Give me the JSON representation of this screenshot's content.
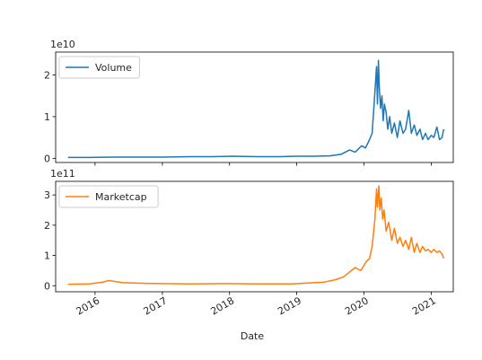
{
  "chart_data": [
    {
      "type": "line",
      "panel": "top",
      "legend_placement": "upper-left",
      "grid": false,
      "exponent_label": "1e10",
      "ylim": [
        -0.1,
        2.55
      ],
      "yticks": [
        0,
        1,
        2
      ],
      "ytick_labels": [
        "0",
        "1",
        "2"
      ],
      "series": [
        {
          "name": "Volume",
          "color": "#1f77b4",
          "x": [
            "2015-08-07",
            "2015-12-01",
            "2016-04-01",
            "2016-09-01",
            "2017-01-01",
            "2017-06-01",
            "2017-10-01",
            "2018-01-15",
            "2018-06-01",
            "2018-10-01",
            "2019-01-01",
            "2019-04-01",
            "2019-07-01",
            "2019-09-01",
            "2019-10-15",
            "2019-11-15",
            "2019-12-20",
            "2020-01-10",
            "2020-02-01",
            "2020-02-15",
            "2020-03-01",
            "2020-03-10",
            "2020-03-15",
            "2020-03-20",
            "2020-03-25",
            "2020-04-01",
            "2020-04-08",
            "2020-04-15",
            "2020-04-22",
            "2020-05-01",
            "2020-05-10",
            "2020-05-20",
            "2020-06-01",
            "2020-06-15",
            "2020-07-01",
            "2020-07-15",
            "2020-08-01",
            "2020-08-15",
            "2020-09-01",
            "2020-09-15",
            "2020-10-01",
            "2020-10-15",
            "2020-11-01",
            "2020-11-15",
            "2020-12-01",
            "2020-12-15",
            "2021-01-01",
            "2021-01-15",
            "2021-02-01",
            "2021-02-15",
            "2021-03-01",
            "2021-03-10"
          ],
          "values": [
            0.02,
            0.02,
            0.03,
            0.03,
            0.03,
            0.04,
            0.04,
            0.05,
            0.04,
            0.04,
            0.05,
            0.05,
            0.06,
            0.1,
            0.2,
            0.15,
            0.3,
            0.25,
            0.45,
            0.6,
            1.6,
            2.2,
            1.3,
            2.35,
            1.7,
            1.2,
            1.5,
            0.9,
            1.3,
            1.1,
            0.7,
            1.0,
            0.6,
            0.85,
            0.5,
            0.9,
            0.6,
            0.7,
            1.15,
            0.6,
            0.8,
            0.55,
            0.7,
            0.45,
            0.6,
            0.45,
            0.55,
            0.5,
            0.75,
            0.45,
            0.5,
            0.7
          ]
        }
      ]
    },
    {
      "type": "line",
      "panel": "bottom",
      "legend_placement": "upper-left",
      "grid": false,
      "exponent_label": "1e11",
      "xlabel": "Date",
      "ylim": [
        -0.2,
        3.45
      ],
      "yticks": [
        0,
        1,
        2,
        3
      ],
      "ytick_labels": [
        "0",
        "1",
        "2",
        "3"
      ],
      "xlim": [
        "2015-06-01",
        "2021-05-01"
      ],
      "xticks": [
        "2016-01-01",
        "2017-01-01",
        "2018-01-01",
        "2019-01-01",
        "2020-01-01",
        "2021-01-01"
      ],
      "xtick_labels": [
        "2016",
        "2017",
        "2018",
        "2019",
        "2020",
        "2021"
      ],
      "series": [
        {
          "name": "Marketcap",
          "color": "#ff7f0e",
          "x": [
            "2015-08-07",
            "2015-12-01",
            "2016-02-15",
            "2016-03-15",
            "2016-06-01",
            "2016-10-01",
            "2017-01-01",
            "2017-06-01",
            "2017-12-01",
            "2018-06-01",
            "2018-12-01",
            "2019-03-01",
            "2019-06-01",
            "2019-08-01",
            "2019-09-15",
            "2019-10-15",
            "2019-11-15",
            "2019-12-15",
            "2020-01-15",
            "2020-02-01",
            "2020-02-15",
            "2020-03-01",
            "2020-03-10",
            "2020-03-15",
            "2020-03-22",
            "2020-03-28",
            "2020-04-05",
            "2020-04-12",
            "2020-04-20",
            "2020-05-01",
            "2020-05-15",
            "2020-06-01",
            "2020-06-15",
            "2020-07-01",
            "2020-07-15",
            "2020-08-01",
            "2020-08-15",
            "2020-09-01",
            "2020-09-15",
            "2020-10-01",
            "2020-10-15",
            "2020-11-01",
            "2020-11-15",
            "2020-12-01",
            "2020-12-15",
            "2021-01-01",
            "2021-01-15",
            "2021-02-01",
            "2021-02-15",
            "2021-03-01",
            "2021-03-10"
          ],
          "values": [
            0.05,
            0.06,
            0.12,
            0.17,
            0.1,
            0.08,
            0.07,
            0.06,
            0.07,
            0.06,
            0.06,
            0.09,
            0.12,
            0.2,
            0.3,
            0.45,
            0.6,
            0.5,
            0.8,
            0.9,
            1.3,
            2.2,
            3.2,
            2.6,
            3.3,
            2.5,
            2.9,
            2.2,
            2.5,
            1.8,
            2.1,
            1.5,
            1.9,
            1.4,
            1.6,
            1.3,
            1.5,
            1.2,
            1.6,
            1.1,
            1.4,
            1.1,
            1.3,
            1.15,
            1.2,
            1.1,
            1.2,
            1.1,
            1.15,
            1.05,
            0.9
          ]
        }
      ]
    }
  ]
}
